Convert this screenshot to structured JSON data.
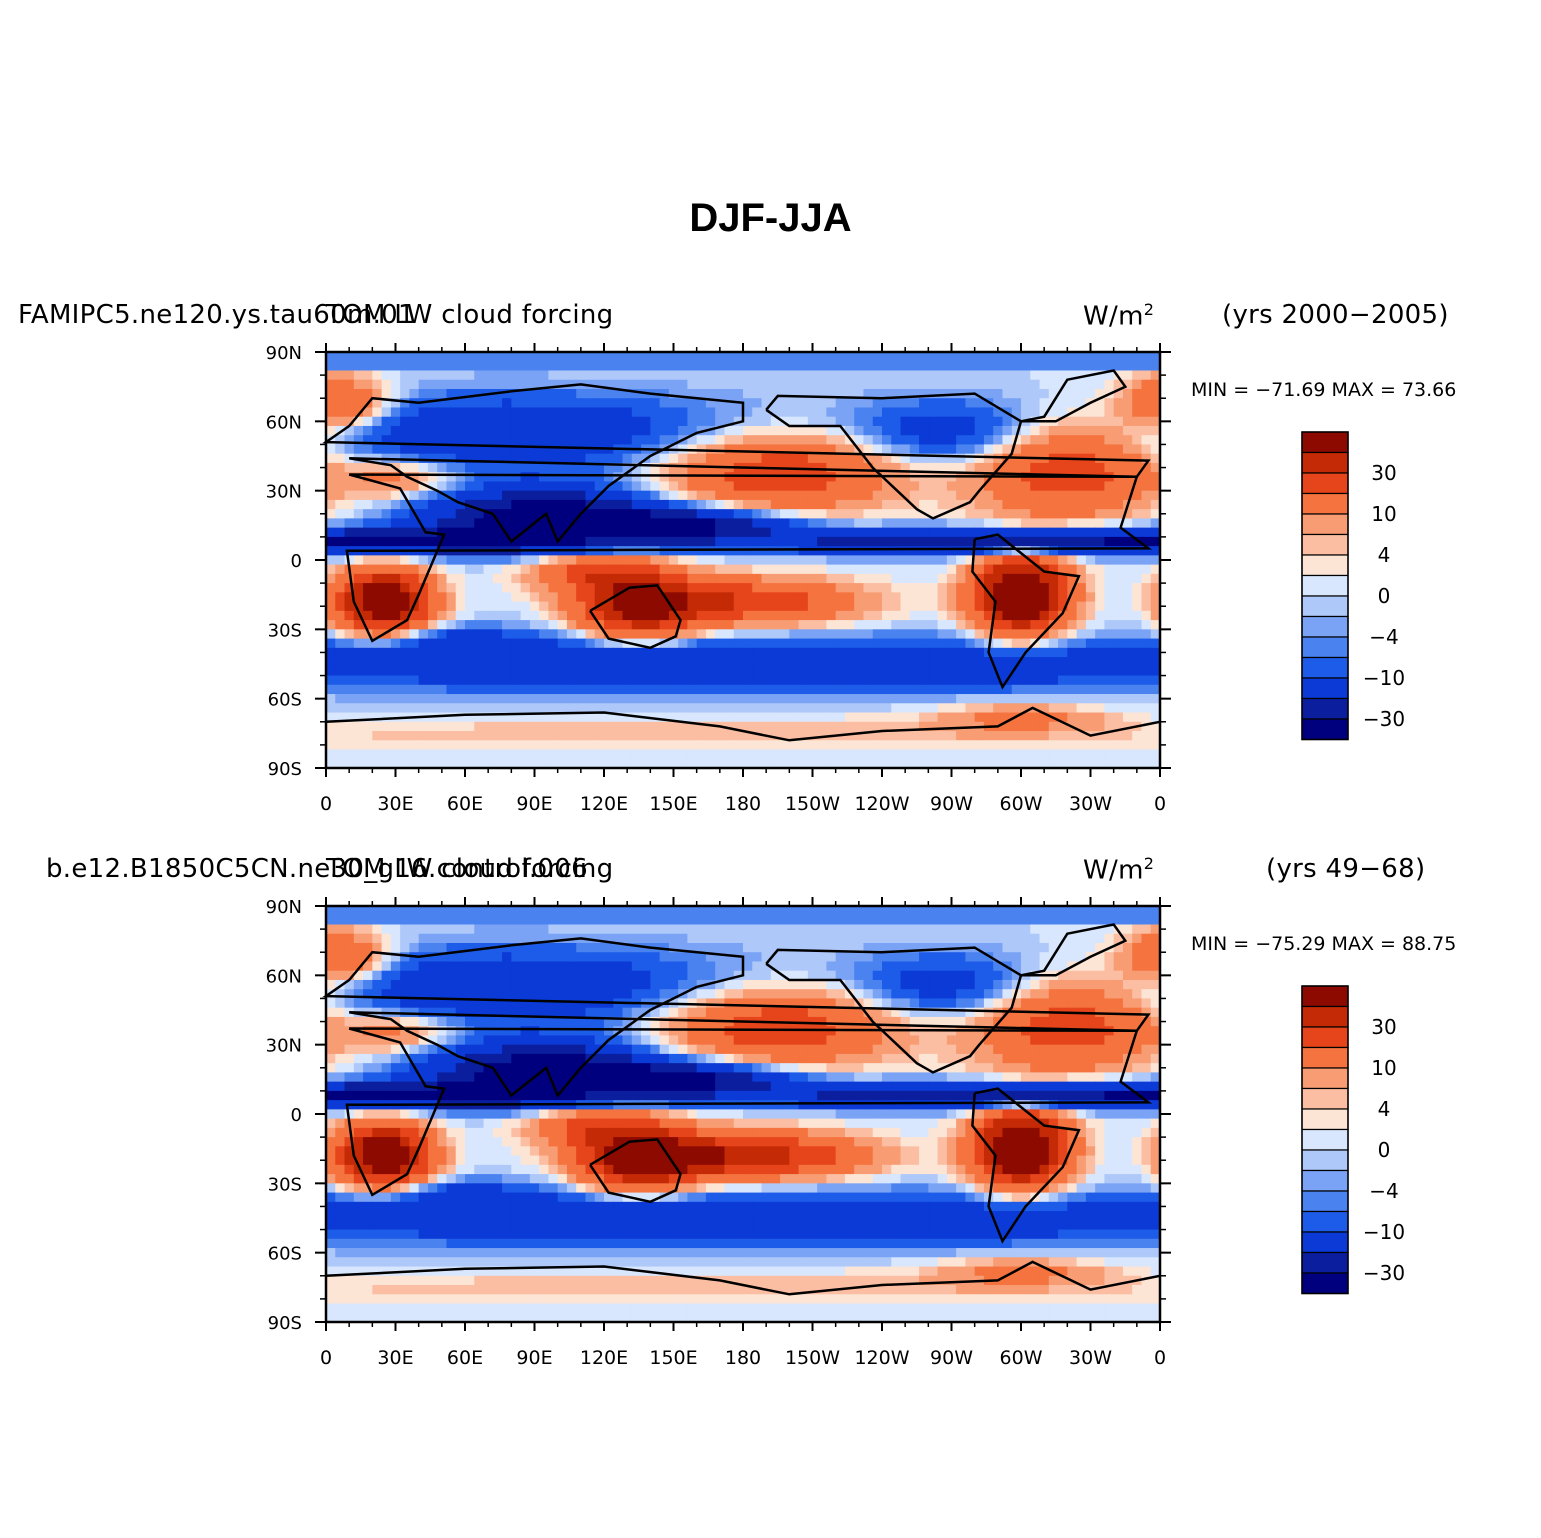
{
  "figure": {
    "title": "DJF-JJA"
  },
  "colors": {
    "levels": [
      "#00007f",
      "#0a1e9e",
      "#0b3ad7",
      "#1d5ce8",
      "#4a83f0",
      "#7ba3f5",
      "#aec8fa",
      "#d8e7fd",
      "#fde5d6",
      "#fbbea2",
      "#f89c74",
      "#f5733f",
      "#e6441a",
      "#c42a05",
      "#8c0a00"
    ],
    "land_outline": "#000000"
  },
  "chart_data": [
    {
      "type": "heatmap",
      "case": "FAMIPC5.ne120.ys.tau60m.01",
      "variable": "TOM LW cloud forcing",
      "units": "W/m",
      "units_exp": "2",
      "years": "(yrs 2000−2005)",
      "stats": "MIN = −71.69  MAX =  73.66",
      "min": -71.69,
      "max": 73.66,
      "x_ticks": [
        "0",
        "30E",
        "60E",
        "90E",
        "120E",
        "150E",
        "180",
        "150W",
        "120W",
        "90W",
        "60W",
        "30W",
        "0"
      ],
      "y_ticks": [
        "90N",
        "60N",
        "30N",
        "0",
        "30S",
        "60S",
        "90S"
      ],
      "colorbar_labels": [
        "30",
        "10",
        "4",
        "0",
        "−4",
        "−10",
        "−30"
      ]
    },
    {
      "type": "heatmap",
      "case": "b.e12.B1850C5CN.ne30_g16.control.006",
      "variable": "TOM LW cloud forcing",
      "units": "W/m",
      "units_exp": "2",
      "years": "(yrs 49−68)",
      "stats": "MIN = −75.29  MAX =  88.75",
      "min": -75.29,
      "max": 88.75,
      "x_ticks": [
        "0",
        "30E",
        "60E",
        "90E",
        "120E",
        "150E",
        "180",
        "150W",
        "120W",
        "90W",
        "60W",
        "30W",
        "0"
      ],
      "y_ticks": [
        "90N",
        "60N",
        "30N",
        "0",
        "30S",
        "60S",
        "90S"
      ],
      "colorbar_labels": [
        "30",
        "10",
        "4",
        "0",
        "−4",
        "−10",
        "−30"
      ]
    }
  ]
}
